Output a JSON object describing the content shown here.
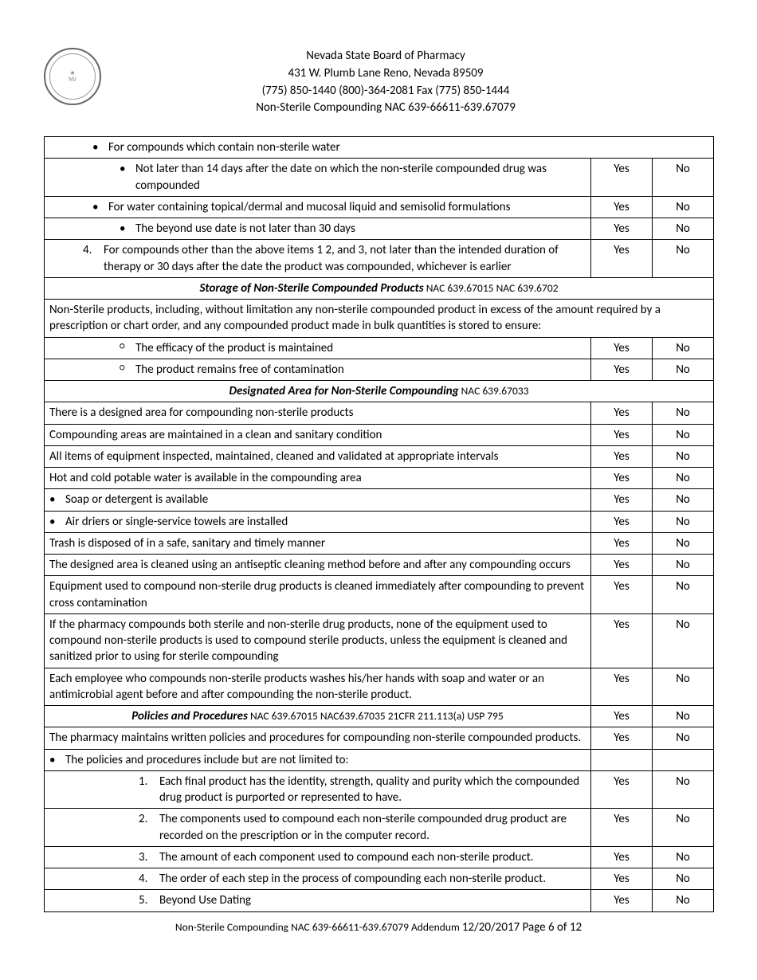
{
  "header": {
    "org": "Nevada State Board of Pharmacy",
    "addr": "431 W. Plumb Lane Reno, Nevada 89509",
    "phone": "(775) 850-1440 (800)-364-2081 Fax (775) 850-1444",
    "title": "Non-Sterile Compounding NAC 639-66611-639.67079"
  },
  "yes": "Yes",
  "no": "No",
  "rows": {
    "r1": "For compounds which contain non-sterile water",
    "r2": "Not later than 14 days after the date on which the non-sterile compounded drug was compounded",
    "r3": "For water containing topical/dermal and mucosal liquid and semisolid formulations",
    "r4": "The beyond use date is not later than 30 days",
    "r5n": "4.",
    "r5": "For compounds other than the above items 1 2, and 3, not later than the intended duration of therapy or 30 days after the date the product was compounded, whichever is earlier",
    "s1t": "Storage of Non-Sterile Compounded Products",
    "s1r": " NAC 639.67015 NAC 639.6702",
    "r6": "Non-Sterile products, including, without limitation any non-sterile compounded product in excess of the amount required by a prescription or chart order, and any compounded product made in bulk quantities is stored to ensure:",
    "r7": "The efficacy of the product is maintained",
    "r8": "The product remains free of contamination",
    "s2t": "Designated Area for Non-Sterile Compounding",
    "s2r": " NAC 639.67033",
    "r9": "There is a designed area for compounding non-sterile products",
    "r10": "Compounding areas are maintained in a clean and sanitary condition",
    "r11": "All items of equipment inspected, maintained, cleaned and validated at appropriate intervals",
    "r12": "Hot and cold potable water is available in the compounding area",
    "r13": "Soap or detergent is available",
    "r14": "Air driers or single-service towels are installed",
    "r15": "Trash is disposed of in a safe, sanitary and timely manner",
    "r16": "The designed area is cleaned using an antiseptic cleaning method before and after any compounding occurs",
    "r17": "Equipment used to compound non-sterile drug products is cleaned immediately after compounding to prevent cross contamination",
    "r18": "If the pharmacy compounds both sterile and non-sterile drug products, none of the equipment used to compound non-sterile products is used to compound sterile products, unless the equipment is cleaned and sanitized prior to using for sterile compounding",
    "r19": "Each employee who compounds non-sterile products washes his/her hands with soap and water or an antimicrobial agent before and after compounding the non-sterile product.",
    "s3t": "Policies and Procedures",
    "s3r": " NAC 639.67015 NAC639.67035 21CFR 211.113(a) USP 795",
    "r20": "The pharmacy maintains written policies and procedures for compounding non-sterile compounded products.",
    "r21": "The policies and procedures include but are not limited to:",
    "r22n": "1.",
    "r22": "Each final product has the identity, strength, quality and purity which the compounded drug product is purported or represented to have.",
    "r23n": "2.",
    "r23": "The components used to compound each non-sterile compounded drug product are recorded on the prescription or in the computer record.",
    "r24n": "3.",
    "r24": "The amount of each component used to compound each non-sterile product.",
    "r25n": "4.",
    "r25": "The order of each step in the process of compounding each non-sterile product.",
    "r26n": "5.",
    "r26": "Beyond Use Dating"
  },
  "footer": {
    "ref": "Non-Sterile Compounding NAC 639-66611-639.67079 Addendum ",
    "date": "12/20/2017",
    "page": " Page 6 of 12"
  }
}
